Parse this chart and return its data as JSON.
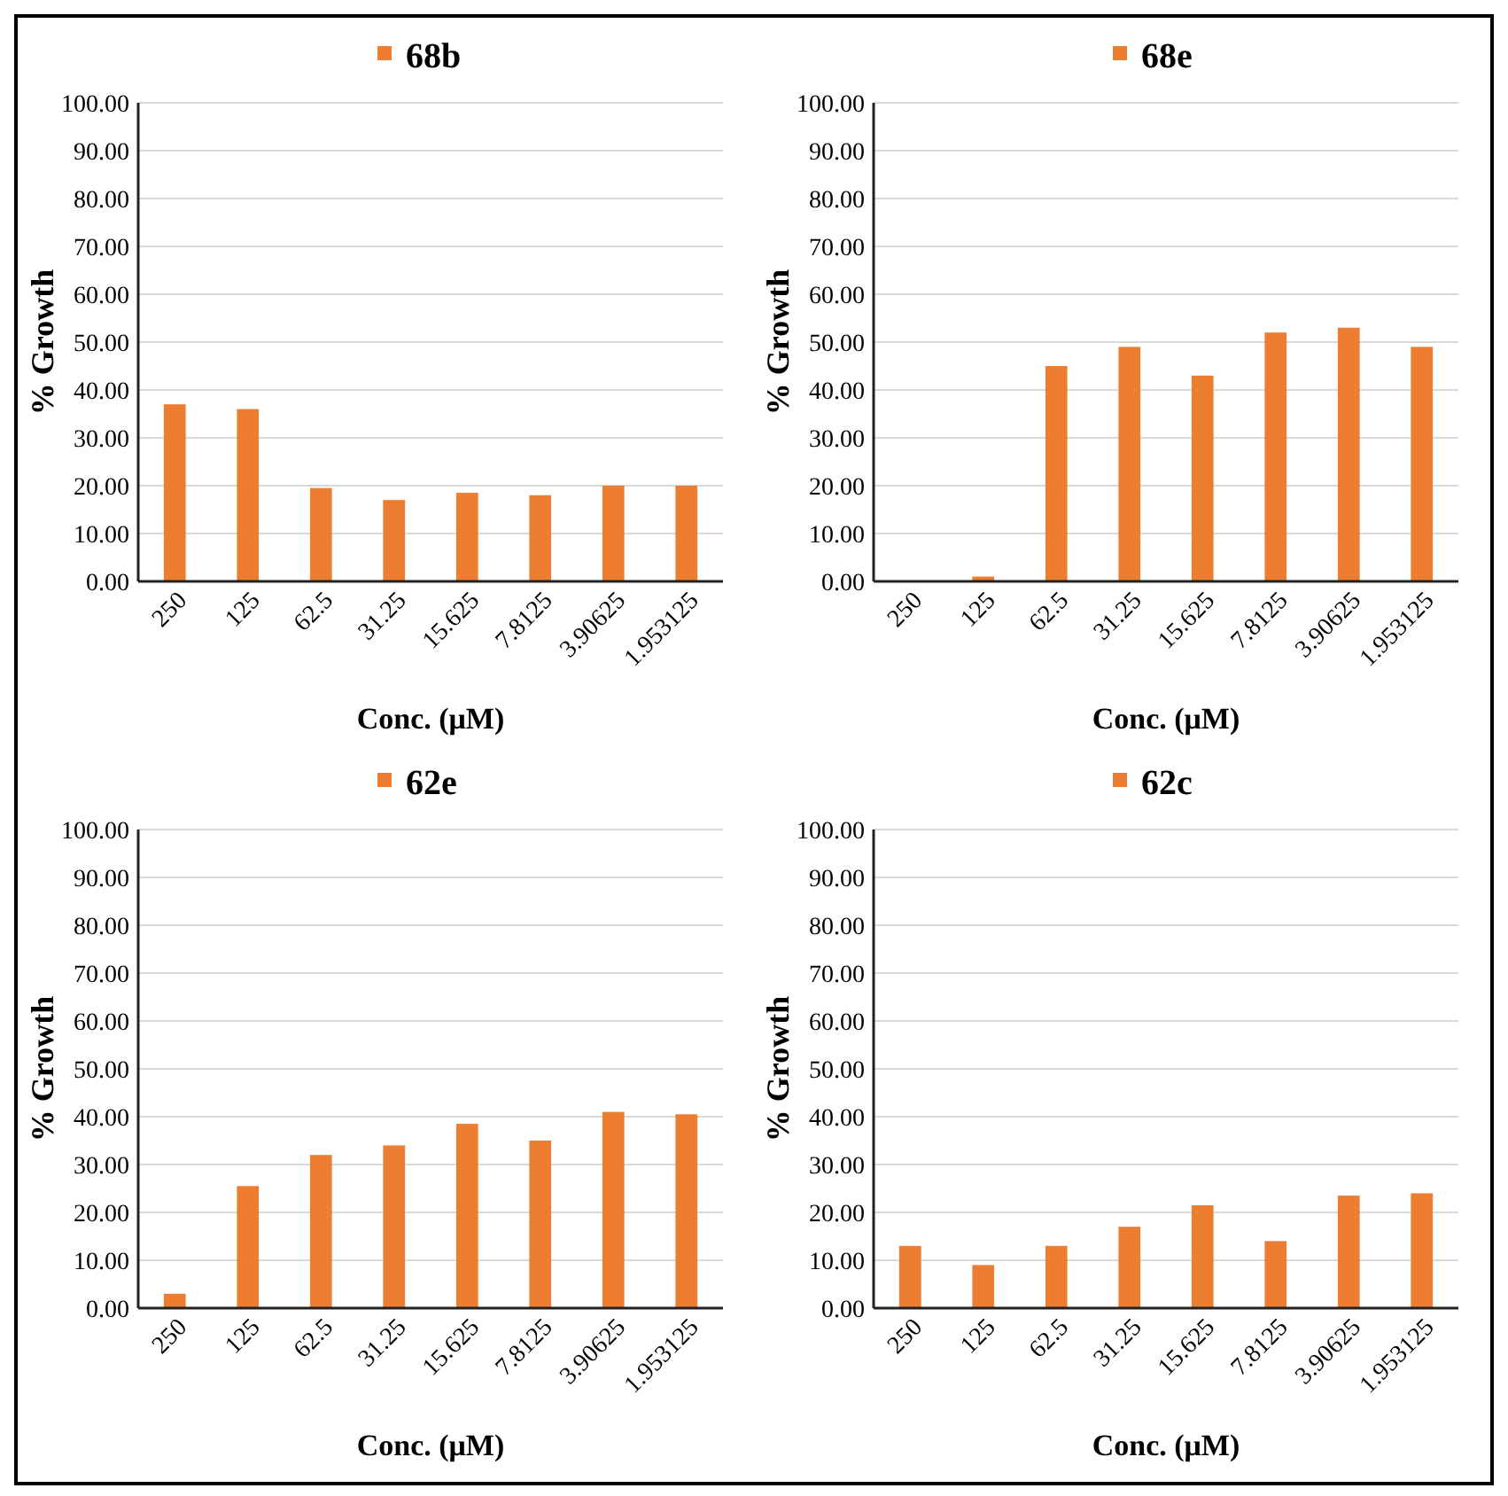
{
  "chart_data": [
    {
      "type": "bar",
      "categories": [
        "250",
        "125",
        "62.5",
        "31.25",
        "15.625",
        "7.8125",
        "3.90625",
        "1.953125"
      ],
      "series": [
        {
          "name": "68b",
          "color": "#ed7d31",
          "values": [
            37,
            36,
            19.5,
            17,
            18.5,
            18,
            20,
            20
          ]
        }
      ],
      "xlabel": "Conc. (μM)",
      "ylabel": "% Growth",
      "ylim": [
        0,
        100
      ],
      "yticks": [
        {
          "value": 0,
          "label": "0.00"
        },
        {
          "value": 10,
          "label": "10.00"
        },
        {
          "value": 20,
          "label": "20.00"
        },
        {
          "value": 30,
          "label": "30.00"
        },
        {
          "value": 40,
          "label": "40.00"
        },
        {
          "value": 50,
          "label": "50.00"
        },
        {
          "value": 60,
          "label": "60.00"
        },
        {
          "value": 70,
          "label": "70.00"
        },
        {
          "value": 80,
          "label": "80.00"
        },
        {
          "value": 90,
          "label": "90.00"
        },
        {
          "value": 100,
          "label": "100.00"
        }
      ],
      "grid": "y",
      "legend": "top"
    },
    {
      "type": "bar",
      "categories": [
        "250",
        "125",
        "62.5",
        "31.25",
        "15.625",
        "7.8125",
        "3.90625",
        "1.953125"
      ],
      "series": [
        {
          "name": "68e",
          "color": "#ed7d31",
          "values": [
            0,
            1,
            45,
            49,
            43,
            52,
            53,
            49
          ]
        }
      ],
      "xlabel": "Conc. (μM)",
      "ylabel": "% Growth",
      "ylim": [
        0,
        100
      ],
      "yticks": [
        {
          "value": 0,
          "label": "0.00"
        },
        {
          "value": 10,
          "label": "10.00"
        },
        {
          "value": 20,
          "label": "20.00"
        },
        {
          "value": 30,
          "label": "30.00"
        },
        {
          "value": 40,
          "label": "40.00"
        },
        {
          "value": 50,
          "label": "50.00"
        },
        {
          "value": 60,
          "label": "60.00"
        },
        {
          "value": 70,
          "label": "70.00"
        },
        {
          "value": 80,
          "label": "80.00"
        },
        {
          "value": 90,
          "label": "90.00"
        },
        {
          "value": 100,
          "label": "100.00"
        }
      ],
      "grid": "y",
      "legend": "top"
    },
    {
      "type": "bar",
      "categories": [
        "250",
        "125",
        "62.5",
        "31.25",
        "15.625",
        "7.8125",
        "3.90625",
        "1.953125"
      ],
      "series": [
        {
          "name": "62e",
          "color": "#ed7d31",
          "values": [
            3,
            25.5,
            32,
            34,
            38.5,
            35,
            41,
            40.5
          ]
        }
      ],
      "xlabel": "Conc. (μM)",
      "ylabel": "% Growth",
      "ylim": [
        0,
        100
      ],
      "yticks": [
        {
          "value": 0,
          "label": "0.00"
        },
        {
          "value": 10,
          "label": "10.00"
        },
        {
          "value": 20,
          "label": "20.00"
        },
        {
          "value": 30,
          "label": "30.00"
        },
        {
          "value": 40,
          "label": "40.00"
        },
        {
          "value": 50,
          "label": "50.00"
        },
        {
          "value": 60,
          "label": "60.00"
        },
        {
          "value": 70,
          "label": "70.00"
        },
        {
          "value": 80,
          "label": "80.00"
        },
        {
          "value": 90,
          "label": "90.00"
        },
        {
          "value": 100,
          "label": "100.00"
        }
      ],
      "grid": "y",
      "legend": "top"
    },
    {
      "type": "bar",
      "categories": [
        "250",
        "125",
        "62.5",
        "31.25",
        "15.625",
        "7.8125",
        "3.90625",
        "1.953125"
      ],
      "series": [
        {
          "name": "62c",
          "color": "#ed7d31",
          "values": [
            13,
            9,
            13,
            17,
            21.5,
            14,
            23.5,
            24
          ]
        }
      ],
      "xlabel": "Conc. (μM)",
      "ylabel": "% Growth",
      "ylim": [
        0,
        100
      ],
      "yticks": [
        {
          "value": 0,
          "label": "0.00"
        },
        {
          "value": 10,
          "label": "10.00"
        },
        {
          "value": 20,
          "label": "20.00"
        },
        {
          "value": 30,
          "label": "30.00"
        },
        {
          "value": 40,
          "label": "40.00"
        },
        {
          "value": 50,
          "label": "50.00"
        },
        {
          "value": 60,
          "label": "60.00"
        },
        {
          "value": 70,
          "label": "70.00"
        },
        {
          "value": 80,
          "label": "80.00"
        },
        {
          "value": 90,
          "label": "90.00"
        },
        {
          "value": 100,
          "label": "100.00"
        }
      ],
      "grid": "y",
      "legend": "top"
    }
  ]
}
